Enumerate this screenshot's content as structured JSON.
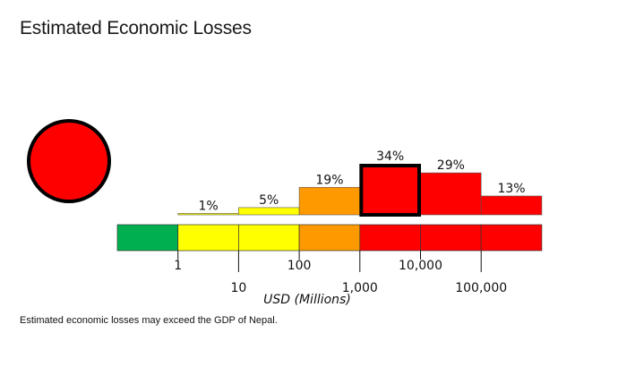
{
  "title": "Estimated Economic Losses",
  "footnote": "Estimated economic losses may exceed the GDP of Nepal.",
  "alert_color": "#ff0000",
  "chart_data": {
    "type": "bar",
    "title": "Estimated Economic Losses",
    "xlabel": "USD (Millions)",
    "ylabel": "",
    "categories": [
      "<1",
      "1-10",
      "10-100",
      "100-1,000",
      "1,000-10,000",
      "10,000-100,000",
      ">100,000"
    ],
    "values": [
      0,
      1,
      5,
      19,
      34,
      29,
      13
    ],
    "labels": [
      "",
      "1%",
      "5%",
      "19%",
      "34%",
      "29%",
      "13%"
    ],
    "unit": "%",
    "ylim": [
      0,
      34
    ],
    "highlighted_category": "1,000-10,000",
    "alert_level": "red",
    "colors": [
      "#00b050",
      "#ffff00",
      "#ffff00",
      "#ff9900",
      "#ff0000",
      "#ff0000",
      "#ff0000"
    ],
    "bin_edges": [
      "1",
      "10",
      "100",
      "1,000",
      "10,000",
      "100,000"
    ]
  }
}
